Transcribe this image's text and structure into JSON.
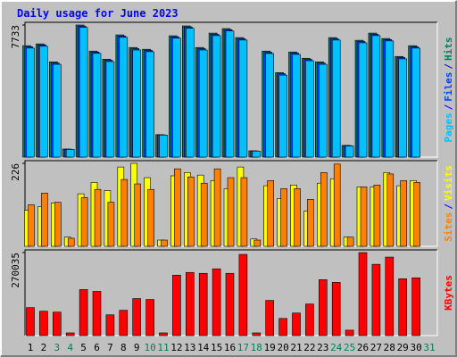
{
  "chart_data": [
    {
      "type": "bar",
      "title": "Daily usage for June 2023",
      "ylim": [
        0,
        7733
      ],
      "yticks": [
        7733
      ],
      "legend_separator": "/",
      "series": [
        {
          "name": "Hits",
          "color": "#00805c",
          "values": [
            6522,
            6628,
            5576,
            473,
            7733,
            6207,
            5733,
            7154,
            6417,
            6312,
            1315,
            7101,
            7680,
            6417,
            7259,
            7522,
            6996,
            368,
            6207,
            4944,
            6154,
            5786,
            5576,
            6996,
            684,
            6838,
            7259,
            6943,
            5891,
            6522,
            null
          ]
        },
        {
          "name": "Files",
          "color": "#0040ff",
          "values": [
            6460,
            6570,
            5510,
            460,
            7670,
            6150,
            5670,
            7090,
            6350,
            6250,
            1300,
            7040,
            7620,
            6350,
            7190,
            7460,
            6930,
            360,
            6140,
            4880,
            6090,
            5720,
            5510,
            6930,
            670,
            6770,
            7190,
            6880,
            5830,
            6460,
            null
          ]
        },
        {
          "name": "Pages",
          "color": "#00c0ff",
          "values": [
            6380,
            6490,
            5430,
            450,
            7590,
            6070,
            5590,
            7010,
            6270,
            6170,
            1290,
            6960,
            7540,
            6270,
            7110,
            7380,
            6850,
            350,
            6060,
            4800,
            6010,
            5640,
            5430,
            6850,
            650,
            6690,
            7110,
            6800,
            5750,
            6380,
            null
          ]
        }
      ]
    },
    {
      "type": "bar",
      "ylim": [
        0,
        226
      ],
      "yticks": [
        226
      ],
      "legend_separator": "/",
      "series": [
        {
          "name": "Visits",
          "color": "#ffff00",
          "values": [
            98,
            108,
            118,
            25,
            143,
            174,
            152,
            216,
            226,
            187,
            17,
            192,
            201,
            194,
            179,
            157,
            216,
            20,
            165,
            130,
            167,
            96,
            172,
            184,
            25,
            162,
            162,
            201,
            165,
            179,
            null
          ]
        },
        {
          "name": "Sites",
          "color": "#ff8000",
          "values": [
            113,
            145,
            120,
            22,
            133,
            155,
            120,
            182,
            170,
            155,
            17,
            211,
            189,
            172,
            211,
            187,
            187,
            17,
            179,
            157,
            157,
            128,
            201,
            224,
            25,
            162,
            167,
            197,
            179,
            174,
            null
          ]
        }
      ]
    },
    {
      "type": "bar",
      "ylim": [
        0,
        270035
      ],
      "yticks": [
        270035
      ],
      "categories": [
        "1",
        "2",
        "3",
        "4",
        "5",
        "6",
        "7",
        "8",
        "9",
        "10",
        "11",
        "12",
        "13",
        "14",
        "15",
        "16",
        "17",
        "18",
        "19",
        "20",
        "21",
        "22",
        "23",
        "24",
        "25",
        "26",
        "27",
        "28",
        "29",
        "30",
        "31"
      ],
      "category_colors": [
        "#000000",
        "#000000",
        "#00805c",
        "#00805c",
        "#000000",
        "#000000",
        "#000000",
        "#000000",
        "#000000",
        "#00805c",
        "#00805c",
        "#000000",
        "#000000",
        "#000000",
        "#000000",
        "#000000",
        "#00805c",
        "#00805c",
        "#000000",
        "#000000",
        "#000000",
        "#000000",
        "#000000",
        "#00805c",
        "#00805c",
        "#000000",
        "#000000",
        "#000000",
        "#000000",
        "#000000",
        "#00805c"
      ],
      "series": [
        {
          "name": "KBytes",
          "color": "#ff0000",
          "values": [
            90985,
            79245,
            76310,
            8805,
            149685,
            143815,
            67505,
            82180,
            120335,
            117400,
            8805,
            196645,
            205450,
            202515,
            217190,
            202515,
            264150,
            8805,
            114465,
            55765,
            73375,
            102725,
            181970,
            173165,
            17610,
            270035,
            231865,
            255345,
            184905,
            187840,
            null
          ]
        }
      ]
    }
  ]
}
